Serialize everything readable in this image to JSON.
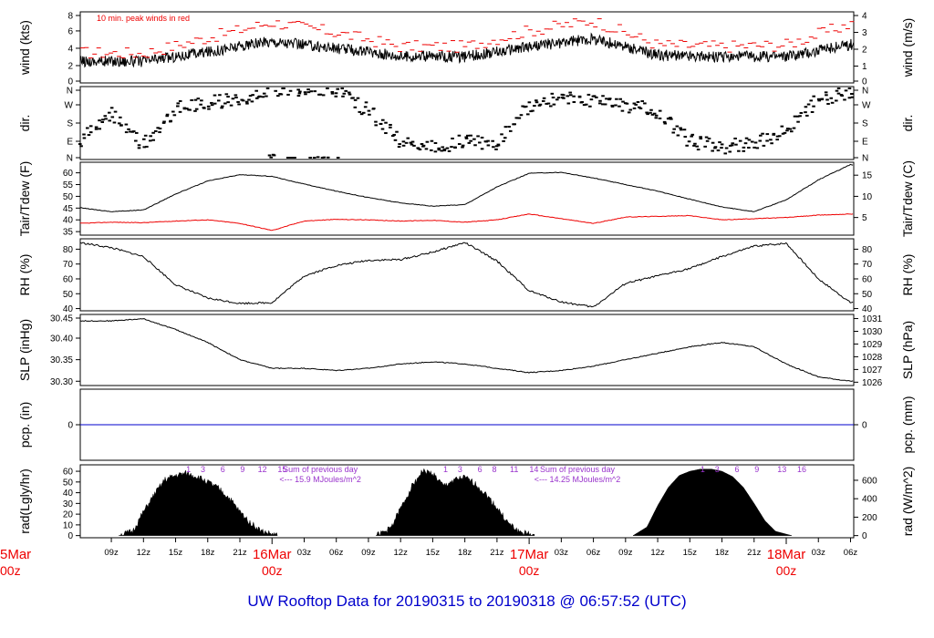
{
  "footer": {
    "title": "UW Rooftop Data for 20190315  to  20190318 @ 06:57:52  (UTC)"
  },
  "colors": {
    "axis": "#000000",
    "series_red": "#ee0000",
    "pcp_line": "#0000cc",
    "purple": "#9933cc",
    "day_label": "#ee0000"
  },
  "x_axis": {
    "hour_ticks": [
      "09z",
      "12z",
      "15z",
      "18z",
      "21z",
      "03z",
      "06z",
      "09z",
      "12z",
      "15z",
      "18z",
      "21z",
      "03z",
      "06z",
      "09z",
      "12z",
      "15z",
      "18z",
      "21z",
      "03z",
      "06z"
    ],
    "day_labels": [
      {
        "date": "5Mar",
        "hour": "00z"
      },
      {
        "date": "16Mar",
        "hour": "00z"
      },
      {
        "date": "17Mar",
        "hour": "00z"
      },
      {
        "date": "18Mar",
        "hour": "00z"
      }
    ]
  },
  "chart_data": [
    {
      "type": "line",
      "panel": "wind",
      "ylabel_left": "wind (kts)",
      "ylabel_right": "wind (m/s)",
      "annotation": "10 min. peak winds in red",
      "yticks_left": [
        "0",
        "2",
        "4",
        "6",
        "8"
      ],
      "yticks_right": [
        "0",
        "1",
        "2",
        "3",
        "4"
      ],
      "ylim": [
        0,
        8.2
      ],
      "grid": false,
      "series": [
        {
          "role": "mean",
          "color": "#000000",
          "x": [
            0,
            6,
            12,
            18,
            24,
            30,
            36,
            42,
            48,
            54,
            60,
            66,
            72,
            78,
            84
          ],
          "y": [
            3.1,
            2.5,
            2.5,
            3.6,
            4.8,
            4.0,
            3.1,
            3.0,
            4.2,
            5.1,
            3.2,
            3.0,
            3.1,
            4.4,
            5.2
          ]
        },
        {
          "role": "peak",
          "color": "#ee0000",
          "x": [
            0,
            6,
            12,
            18,
            24,
            30,
            36,
            42,
            48,
            54,
            60,
            66,
            72,
            78,
            84
          ],
          "y": [
            4.2,
            3.5,
            3.4,
            5.2,
            7.0,
            5.8,
            4.2,
            4.2,
            6.0,
            7.2,
            4.4,
            4.2,
            4.4,
            6.8,
            7.3
          ]
        }
      ]
    },
    {
      "type": "scatter",
      "panel": "dir",
      "ylabel_left": "dir.",
      "ylabel_right": "dir.",
      "yticks_left": [
        "N",
        "W",
        "S",
        "E",
        "N"
      ],
      "yticks_right": [
        "N",
        "W",
        "S",
        "E",
        "N"
      ],
      "ylim": [
        0,
        360
      ],
      "note": "wind direction in degrees clockwise from N (0 = bottom N, 360 = top N)",
      "series": [
        {
          "name": "",
          "x": [
            0,
            3,
            6,
            9,
            12,
            15,
            18,
            21,
            24,
            27,
            30,
            33,
            36,
            39,
            42,
            45,
            48,
            51,
            54,
            57,
            60,
            63,
            66,
            69,
            72,
            75,
            78,
            81,
            84
          ],
          "y": [
            260,
            110,
            80,
            230,
            70,
            250,
            280,
            300,
            350,
            345,
            340,
            240,
            90,
            60,
            90,
            80,
            270,
            300,
            290,
            270,
            240,
            90,
            60,
            80,
            140,
            300,
            330,
            340,
            345
          ]
        }
      ]
    },
    {
      "type": "line",
      "panel": "temp",
      "ylabel_left": "Tair/Tdew (F)",
      "ylabel_right": "Tair/Tdew (C)",
      "yticks_left": [
        "35",
        "40",
        "45",
        "50",
        "55",
        "60"
      ],
      "yticks_right": [
        "5",
        "10",
        "15"
      ],
      "ylim": [
        33.5,
        64.5
      ],
      "series": [
        {
          "role": "Tair",
          "color": "#000000",
          "x": [
            0,
            3,
            6,
            9,
            12,
            15,
            18,
            21,
            24,
            27,
            30,
            33,
            36,
            39,
            42,
            45,
            48,
            51,
            54,
            57,
            60,
            63,
            66,
            69,
            72,
            75,
            78,
            81,
            84
          ],
          "y": [
            50.0,
            47.8,
            45.2,
            43.5,
            44.2,
            51.0,
            56.5,
            59.2,
            58.5,
            55.2,
            52.2,
            49.5,
            47.2,
            45.8,
            46.5,
            54.0,
            59.8,
            60.2,
            57.8,
            55.0,
            52.2,
            48.8,
            45.5,
            43.5,
            48.5,
            57.0,
            63.5,
            61.0,
            52.2
          ]
        },
        {
          "role": "Tdew",
          "color": "#ee0000",
          "x": [
            0,
            3,
            6,
            9,
            12,
            15,
            18,
            21,
            24,
            27,
            30,
            33,
            36,
            39,
            42,
            45,
            48,
            51,
            54,
            57,
            60,
            63,
            66,
            69,
            72,
            75,
            78,
            81,
            84
          ],
          "y": [
            37.5,
            38.8,
            38.5,
            39.0,
            38.8,
            39.5,
            40.0,
            38.5,
            35.5,
            39.5,
            40.2,
            40.0,
            39.5,
            39.8,
            39.0,
            40.0,
            42.5,
            40.5,
            38.5,
            41.2,
            41.5,
            41.8,
            40.0,
            40.5,
            41.0,
            42.0,
            42.5,
            42.0,
            42.0
          ]
        }
      ]
    },
    {
      "type": "line",
      "panel": "rh",
      "ylabel_left": "RH (%)",
      "ylabel_right": "RH (%)",
      "yticks_left": [
        "40",
        "50",
        "60",
        "70",
        "80"
      ],
      "yticks_right": [
        "40",
        "50",
        "60",
        "70",
        "80"
      ],
      "ylim": [
        38.5,
        87
      ],
      "series": [
        {
          "role": "RH",
          "color": "#000000",
          "x": [
            0,
            3,
            6,
            9,
            12,
            15,
            18,
            21,
            24,
            27,
            30,
            33,
            36,
            39,
            42,
            45,
            48,
            51,
            54,
            57,
            60,
            63,
            66,
            69,
            72,
            75,
            78,
            81,
            84
          ],
          "y": [
            60.0,
            77.0,
            84.5,
            81.0,
            75.0,
            56.0,
            47.0,
            43.5,
            44.0,
            62.0,
            69.0,
            72.5,
            73.0,
            78.0,
            84.5,
            72.0,
            52.0,
            44.5,
            41.0,
            57.0,
            62.0,
            67.0,
            75.0,
            82.0,
            84.0,
            60.0,
            44.0,
            50.0,
            64.0
          ]
        }
      ]
    },
    {
      "type": "line",
      "panel": "slp",
      "ylabel_left": "SLP (inHg)",
      "ylabel_right": "SLP (hPa)",
      "yticks_left": [
        "30.30",
        "30.35",
        "30.40",
        "30.45"
      ],
      "yticks_right": [
        "1026",
        "1027",
        "1028",
        "1029",
        "1030",
        "1031"
      ],
      "ylim": [
        30.29,
        30.455
      ],
      "series": [
        {
          "role": "SLP",
          "color": "#000000",
          "x": [
            0,
            3,
            6,
            9,
            12,
            15,
            18,
            21,
            24,
            27,
            30,
            33,
            36,
            39,
            42,
            45,
            48,
            51,
            54,
            57,
            60,
            63,
            66,
            69,
            72,
            75,
            78,
            81,
            84
          ],
          "y": [
            30.44,
            30.445,
            30.44,
            30.44,
            30.445,
            30.42,
            30.39,
            30.35,
            30.33,
            30.33,
            30.325,
            30.33,
            30.34,
            30.345,
            30.34,
            30.33,
            30.32,
            30.325,
            30.335,
            30.35,
            30.365,
            30.38,
            30.39,
            30.38,
            30.34,
            30.31,
            30.3,
            30.3,
            30.305
          ]
        }
      ]
    },
    {
      "type": "line",
      "panel": "pcp",
      "ylabel_left": "pcp. (in)",
      "ylabel_right": "pcp. (mm)",
      "yticks_left": [
        "0"
      ],
      "yticks_right": [
        "0"
      ],
      "ylim": [
        -1,
        1
      ],
      "series": [
        {
          "role": "pcp",
          "color": "#0000cc",
          "x": [
            0,
            84
          ],
          "y": [
            0,
            0
          ]
        }
      ]
    },
    {
      "type": "area",
      "panel": "rad",
      "ylabel_left": "rad(Lgly/hr)",
      "ylabel_right": "rad (W/m^2)",
      "yticks_left": [
        "0",
        "10",
        "20",
        "30",
        "40",
        "50",
        "60"
      ],
      "yticks_right": [
        "0",
        "200",
        "400",
        "600"
      ],
      "ylim": [
        -2,
        66
      ],
      "annotations": [
        {
          "text": "Sum of previous day",
          "sub": "<--- 15.9 MJoules/m^2"
        },
        {
          "text": "Sum of previous day",
          "sub": "<--- 14.25 MJoules/m^2"
        }
      ],
      "hour_marks": [
        [
          "1",
          "3",
          "6",
          "9",
          "12",
          "15"
        ],
        [
          "1",
          "3",
          "6",
          "8",
          "11",
          "14"
        ],
        [
          "1",
          "3",
          "6",
          "9",
          "13",
          "16"
        ]
      ],
      "series": [
        {
          "role": "day1",
          "color": "#000000",
          "x": [
            9.7,
            11,
            12,
            13,
            14,
            15,
            16,
            17,
            18,
            19,
            20,
            21,
            22,
            23,
            24.5
          ],
          "y": [
            0,
            4,
            22,
            38,
            52,
            56,
            58,
            55,
            50,
            44,
            35,
            22,
            12,
            4,
            0
          ]
        },
        {
          "role": "day2",
          "color": "#000000",
          "x": [
            33.7,
            35,
            36,
            37,
            38,
            39,
            40,
            41,
            42,
            43,
            44,
            45,
            46,
            47,
            48.5
          ],
          "y": [
            0,
            6,
            25,
            45,
            60,
            58,
            46,
            52,
            54,
            48,
            38,
            26,
            12,
            4,
            0
          ]
        },
        {
          "role": "day3",
          "color": "#000000",
          "x": [
            57.7,
            59,
            60,
            61,
            62,
            63,
            64,
            65,
            66,
            67,
            68,
            69,
            70,
            71,
            72.5
          ],
          "y": [
            0,
            8,
            28,
            45,
            56,
            60,
            62,
            62,
            60,
            55,
            45,
            30,
            14,
            4,
            0
          ]
        }
      ]
    }
  ]
}
